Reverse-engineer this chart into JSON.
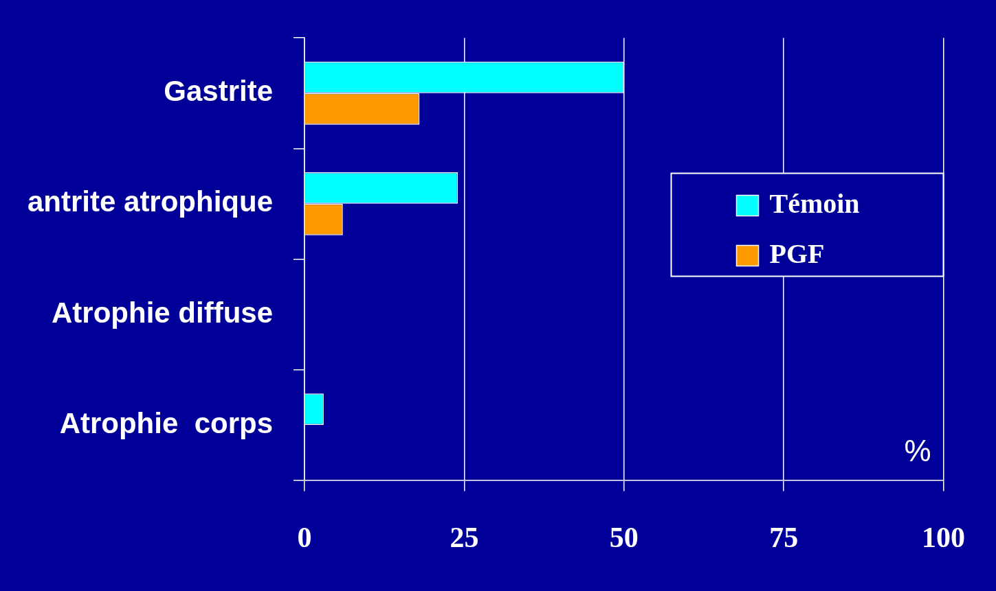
{
  "chart_data": {
    "type": "bar",
    "orientation": "horizontal",
    "categories": [
      "Gastrite",
      "antrite atrophique",
      "Atrophie diffuse",
      "Atrophie  corps"
    ],
    "series": [
      {
        "name": "Témoin",
        "color": "#00ffff",
        "values": [
          50,
          24,
          0,
          3
        ]
      },
      {
        "name": "PGF",
        "color": "#ff9900",
        "values": [
          18,
          6,
          0,
          0
        ]
      }
    ],
    "xlim": [
      0,
      100
    ],
    "xticks": [
      0,
      25,
      50,
      75,
      100
    ],
    "grid": "x",
    "legend": "right",
    "annotations": [
      "%"
    ]
  }
}
